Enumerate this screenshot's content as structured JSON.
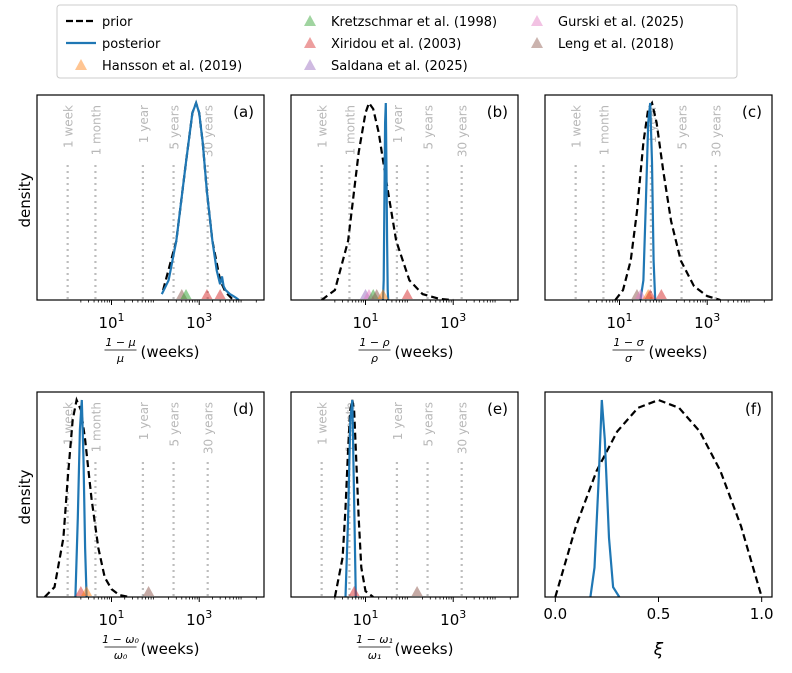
{
  "legend": {
    "items": [
      {
        "label": "prior",
        "kind": "line",
        "style": "dashed",
        "color": "#000000"
      },
      {
        "label": "posterior",
        "kind": "line",
        "style": "solid",
        "color": "#1f77b4"
      },
      {
        "label": "Hansson et al. (2019)",
        "kind": "triangle",
        "color": "#ff7f0e"
      },
      {
        "label": "Kretzschmar et al. (1998)",
        "kind": "triangle",
        "color": "#2ca02c"
      },
      {
        "label": "Xiridou et al. (2003)",
        "kind": "triangle",
        "color": "#d62728"
      },
      {
        "label": "Saldana et al. (2025)",
        "kind": "triangle",
        "color": "#9467bd"
      },
      {
        "label": "Gurski et al. (2025)",
        "kind": "triangle",
        "color": "#e377c2"
      },
      {
        "label": "Leng et al. (2018)",
        "kind": "triangle",
        "color": "#8c564b"
      }
    ]
  },
  "y_label": "density",
  "reference_lines": {
    "labels": [
      "1 week",
      "1 month",
      "1 year",
      "5 years",
      "30 years"
    ],
    "weeks": [
      1,
      4.3,
      52,
      260,
      1560
    ]
  },
  "chart_data": [
    {
      "type": "line",
      "panel": "(a)",
      "xscale": "log",
      "xlim": [
        0.2,
        30000
      ],
      "xlabel_frac": "1 − μ / μ",
      "xlabel_unit": "(weeks)",
      "xticks": [
        {
          "value": 10,
          "base": "10",
          "exp": "1"
        },
        {
          "value": 1000,
          "base": "10",
          "exp": "3"
        }
      ],
      "prior": {
        "x": [
          150,
          300,
          500,
          700,
          850,
          1000,
          1200,
          1500,
          2000,
          3000,
          4000,
          6000
        ],
        "y": [
          0.05,
          0.3,
          0.7,
          0.95,
          1.0,
          0.95,
          0.8,
          0.55,
          0.3,
          0.1,
          0.04,
          0.0
        ]
      },
      "posterior": {
        "x": [
          140,
          200,
          300,
          500,
          700,
          850,
          1000,
          1200,
          1500,
          2000,
          2500,
          3000,
          3300,
          3600,
          4000,
          5000,
          6000,
          7000,
          8000
        ],
        "y": [
          0.03,
          0.1,
          0.3,
          0.7,
          0.95,
          1.0,
          0.95,
          0.8,
          0.55,
          0.3,
          0.15,
          0.08,
          0.12,
          0.07,
          0.05,
          0.03,
          0.02,
          0.01,
          0.0
        ]
      },
      "studies": [
        {
          "name": "Leng et al. (2018)",
          "value": 400
        },
        {
          "name": "Kretzschmar et al. (1998)",
          "value": 500
        },
        {
          "name": "Xiridou et al. (2003)",
          "value": 1500
        },
        {
          "name": "Xiridou et al. (2003)",
          "value": 3000
        }
      ],
      "ref_lines": true
    },
    {
      "type": "line",
      "panel": "(b)",
      "xscale": "log",
      "xlim": [
        0.2,
        30000
      ],
      "xlabel_frac": "1 − ρ / ρ",
      "xlabel_unit": "(weeks)",
      "xticks": [
        {
          "value": 10,
          "base": "10",
          "exp": "1"
        },
        {
          "value": 1000,
          "base": "10",
          "exp": "3"
        }
      ],
      "prior": {
        "x": [
          1,
          2,
          4,
          7,
          10,
          12,
          15,
          20,
          30,
          50,
          100,
          200,
          500,
          1000
        ],
        "y": [
          0.0,
          0.05,
          0.3,
          0.75,
          0.95,
          1.0,
          0.97,
          0.85,
          0.6,
          0.3,
          0.1,
          0.03,
          0.005,
          0.0
        ]
      },
      "posterior": {
        "x": [
          25,
          26,
          27,
          28,
          29,
          30,
          31,
          32,
          33
        ],
        "y": [
          0.0,
          0.1,
          0.5,
          0.9,
          1.0,
          0.7,
          0.3,
          0.05,
          0.0
        ]
      },
      "studies": [
        {
          "name": "Saldana et al. (2025)",
          "value": 10
        },
        {
          "name": "Gurski et al. (2025)",
          "value": 12
        },
        {
          "name": "Kretzschmar et al. (1998)",
          "value": 15
        },
        {
          "name": "Leng et al. (2018)",
          "value": 18
        },
        {
          "name": "Hansson et al. (2019)",
          "value": 25
        },
        {
          "name": "Xiridou et al. (2003)",
          "value": 90
        }
      ],
      "ref_lines": true
    },
    {
      "type": "line",
      "panel": "(c)",
      "xscale": "log",
      "xlim": [
        0.2,
        30000
      ],
      "xlabel_frac": "1 − σ / σ",
      "xlabel_unit": "(weeks)",
      "xticks": [
        {
          "value": 10,
          "base": "10",
          "exp": "1"
        },
        {
          "value": 1000,
          "base": "10",
          "exp": "3"
        }
      ],
      "prior": {
        "x": [
          8,
          12,
          18,
          25,
          35,
          45,
          55,
          70,
          100,
          150,
          250,
          500,
          1000,
          2000
        ],
        "y": [
          0.0,
          0.05,
          0.2,
          0.45,
          0.8,
          0.97,
          1.0,
          0.9,
          0.65,
          0.4,
          0.2,
          0.07,
          0.02,
          0.0
        ]
      },
      "posterior": {
        "x": [
          30,
          35,
          40,
          45,
          50,
          55,
          60,
          65
        ],
        "y": [
          0.0,
          0.1,
          0.5,
          0.9,
          1.0,
          0.7,
          0.2,
          0.0
        ]
      },
      "studies": [
        {
          "name": "Leng et al. (2018)",
          "value": 25
        },
        {
          "name": "Gurski et al. (2025)",
          "value": 30
        },
        {
          "name": "Hansson et al. (2019)",
          "value": 45
        },
        {
          "name": "Xiridou et al. (2003)",
          "value": 50
        },
        {
          "name": "Xiridou et al. (2003)",
          "value": 90
        }
      ],
      "ref_lines": true
    },
    {
      "type": "line",
      "panel": "(d)",
      "xscale": "log",
      "xlim": [
        0.2,
        30000
      ],
      "xlabel_frac": "1 − ω₀ / ω₀",
      "xlabel_unit": "(weeks)",
      "xticks": [
        {
          "value": 10,
          "base": "10",
          "exp": "1"
        },
        {
          "value": 1000,
          "base": "10",
          "exp": "3"
        }
      ],
      "prior": {
        "x": [
          0.3,
          0.5,
          0.8,
          1.0,
          1.3,
          1.6,
          2.0,
          2.5,
          3.5,
          5,
          7,
          10,
          15,
          25
        ],
        "y": [
          0.0,
          0.05,
          0.3,
          0.6,
          0.9,
          1.0,
          0.95,
          0.8,
          0.5,
          0.25,
          0.1,
          0.04,
          0.01,
          0.0
        ]
      },
      "posterior": {
        "x": [
          1.5,
          1.7,
          1.9,
          2.1,
          2.3,
          2.5,
          2.7
        ],
        "y": [
          0.0,
          0.4,
          0.85,
          1.0,
          0.7,
          0.25,
          0.0
        ]
      },
      "studies": [
        {
          "name": "Xiridou et al. (2003)",
          "value": 2
        },
        {
          "name": "Hansson et al. (2019)",
          "value": 2.7
        },
        {
          "name": "Leng et al. (2018)",
          "value": 70
        }
      ],
      "ref_lines": true
    },
    {
      "type": "line",
      "panel": "(e)",
      "xscale": "log",
      "xlim": [
        0.2,
        30000
      ],
      "xlabel_frac": "1 − ω₁ / ω₁",
      "xlabel_unit": "(weeks)",
      "xticks": [
        {
          "value": 10,
          "base": "10",
          "exp": "1"
        },
        {
          "value": 1000,
          "base": "10",
          "exp": "3"
        }
      ],
      "prior": {
        "x": [
          2,
          3,
          3.5,
          4,
          4.5,
          5,
          5.5,
          6,
          7,
          8,
          10,
          15
        ],
        "y": [
          0.0,
          0.2,
          0.45,
          0.75,
          0.95,
          1.0,
          0.95,
          0.75,
          0.4,
          0.15,
          0.03,
          0.0
        ]
      },
      "posterior": {
        "x": [
          3.5,
          4,
          4.5,
          5,
          5.5,
          6
        ],
        "y": [
          0.0,
          0.4,
          0.9,
          1.0,
          0.5,
          0.0
        ]
      },
      "studies": [
        {
          "name": "Xiridou et al. (2003)",
          "value": 5.5
        },
        {
          "name": "Leng et al. (2018)",
          "value": 150
        }
      ],
      "ref_lines": true
    },
    {
      "type": "line",
      "panel": "(f)",
      "xscale": "linear",
      "xlim": [
        -0.05,
        1.05
      ],
      "xlabel_frac": "",
      "xlabel_unit": "ξ",
      "xticks": [
        {
          "value": 0,
          "label": "0.0"
        },
        {
          "value": 0.5,
          "label": "0.5"
        },
        {
          "value": 1,
          "label": "1.0"
        }
      ],
      "prior": {
        "x": [
          0,
          0.1,
          0.2,
          0.3,
          0.4,
          0.5,
          0.6,
          0.7,
          0.8,
          0.9,
          1.0
        ],
        "y": [
          0.0,
          0.36,
          0.64,
          0.84,
          0.96,
          1.0,
          0.96,
          0.84,
          0.64,
          0.36,
          0.0
        ]
      },
      "posterior": {
        "x": [
          0.17,
          0.19,
          0.21,
          0.225,
          0.24,
          0.26,
          0.28,
          0.31
        ],
        "y": [
          0.0,
          0.15,
          0.6,
          1.0,
          0.8,
          0.3,
          0.05,
          0.0
        ]
      },
      "studies": [],
      "ref_lines": false
    }
  ]
}
